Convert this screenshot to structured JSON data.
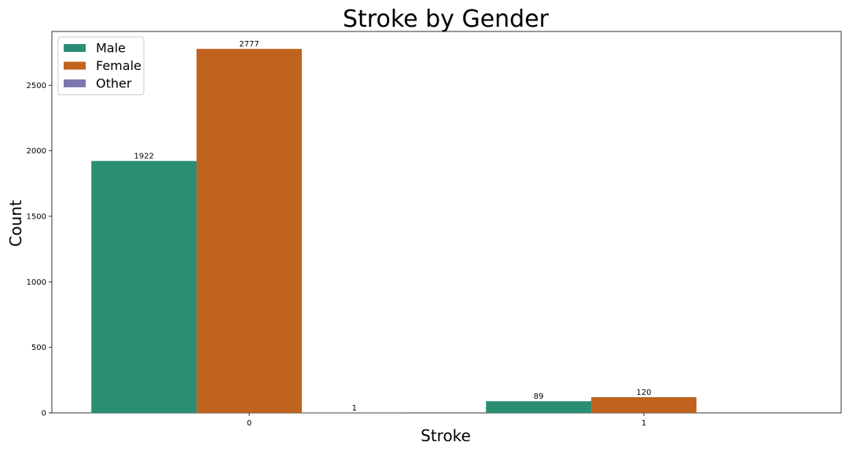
{
  "chart_data": {
    "type": "bar",
    "title": "Stroke by Gender",
    "xlabel": "Stroke",
    "ylabel": "Count",
    "categories": [
      "0",
      "1"
    ],
    "ylim": [
      0,
      2910
    ],
    "yticks": [
      0,
      500,
      1000,
      1500,
      2000,
      2500
    ],
    "grid": false,
    "legend_position": "top-left",
    "series": [
      {
        "name": "Male",
        "color": "#2b8e72",
        "values": [
          1922,
          89
        ]
      },
      {
        "name": "Female",
        "color": "#bf631e",
        "values": [
          2777,
          120
        ]
      },
      {
        "name": "Other",
        "color": "#7c76b1",
        "values": [
          1,
          null
        ]
      }
    ],
    "data_labels": [
      [
        "1922",
        "89"
      ],
      [
        "2777",
        "120"
      ],
      [
        "1",
        ""
      ]
    ]
  }
}
